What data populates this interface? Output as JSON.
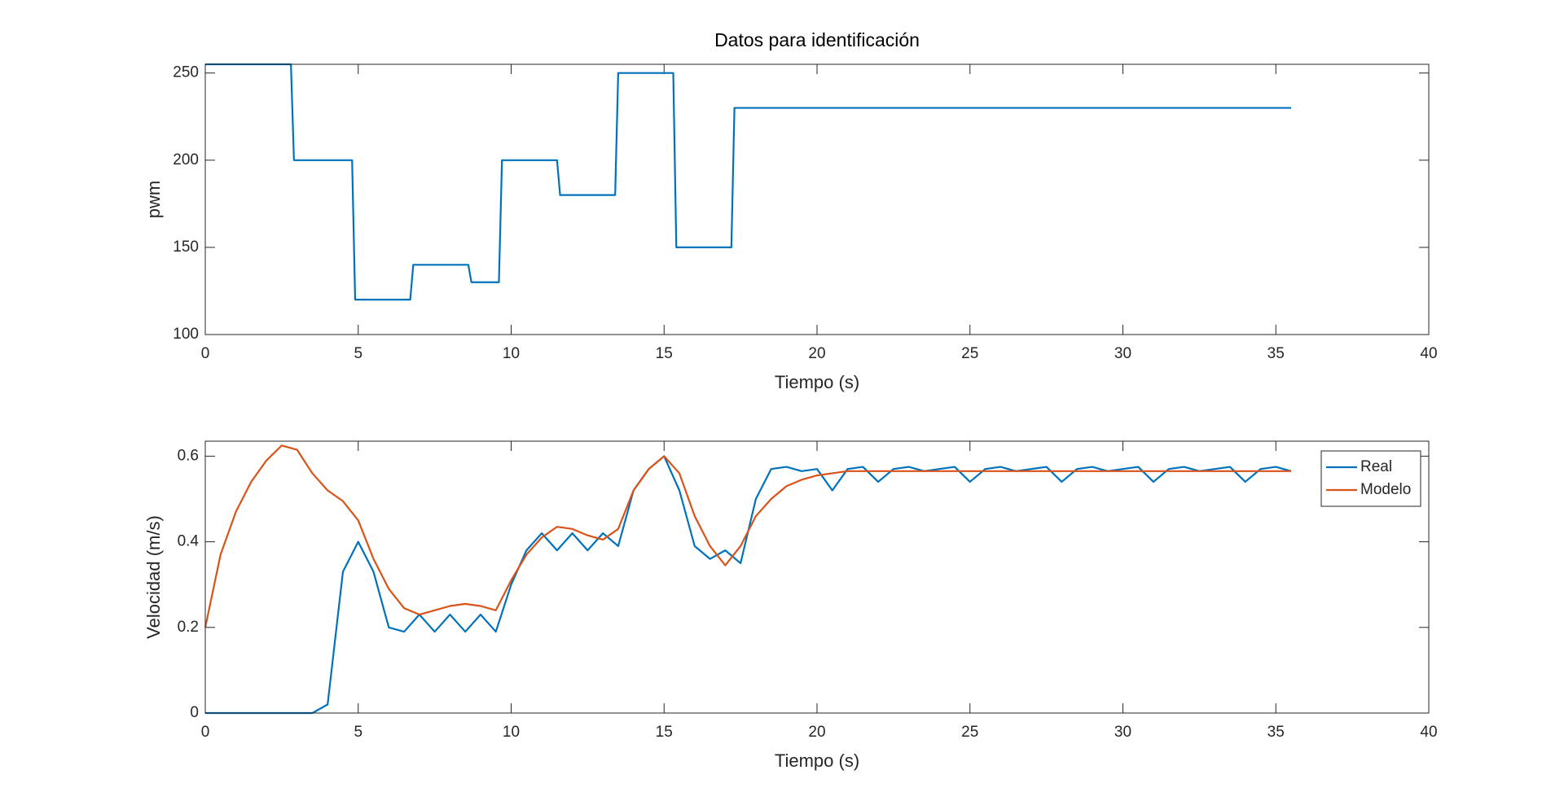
{
  "chart_data": [
    {
      "type": "line",
      "title": "Datos para identificación",
      "xlabel": "Tiempo (s)",
      "ylabel": "pwm",
      "x": [
        0,
        2.8,
        2.9,
        4.8,
        4.9,
        6.7,
        6.8,
        8.6,
        8.7,
        9.6,
        9.7,
        11.5,
        11.6,
        13.4,
        13.5,
        15.3,
        15.4,
        17.2,
        17.3,
        35.5
      ],
      "values": [
        255,
        255,
        200,
        200,
        120,
        120,
        140,
        140,
        130,
        130,
        200,
        200,
        180,
        180,
        250,
        250,
        150,
        150,
        230,
        230
      ],
      "color": "#0072bd",
      "xlim": [
        0,
        40
      ],
      "xticks": [
        0,
        5,
        10,
        15,
        20,
        25,
        30,
        35,
        40
      ],
      "ylim": [
        100,
        255
      ],
      "yticks": [
        100,
        150,
        200,
        250
      ]
    },
    {
      "type": "line",
      "xlabel": "Tiempo (s)",
      "ylabel": "Velocidad (m/s)",
      "x": [
        0,
        0.5,
        1,
        1.5,
        2,
        2.5,
        3,
        3.5,
        4,
        4.5,
        5,
        5.5,
        6,
        6.5,
        7,
        7.5,
        8,
        8.5,
        9,
        9.5,
        10,
        10.5,
        11,
        11.5,
        12,
        12.5,
        13,
        13.5,
        14,
        14.5,
        15,
        15.5,
        16,
        16.5,
        17,
        17.5,
        18,
        18.5,
        19,
        19.5,
        20,
        20.5,
        21,
        21.5,
        22,
        22.5,
        23,
        23.5,
        24,
        24.5,
        25,
        25.5,
        26,
        26.5,
        27,
        27.5,
        28,
        28.5,
        29,
        29.5,
        30,
        30.5,
        31,
        31.5,
        32,
        32.5,
        33,
        33.5,
        34,
        34.5,
        35,
        35.5
      ],
      "series": [
        {
          "name": "Real",
          "color": "#0072bd",
          "values": [
            0,
            0,
            0,
            0,
            0,
            0,
            0,
            0,
            0.02,
            0.33,
            0.4,
            0.33,
            0.2,
            0.19,
            0.23,
            0.19,
            0.23,
            0.19,
            0.23,
            0.19,
            0.3,
            0.38,
            0.42,
            0.38,
            0.42,
            0.38,
            0.42,
            0.39,
            0.52,
            0.57,
            0.6,
            0.52,
            0.39,
            0.36,
            0.38,
            0.35,
            0.5,
            0.57,
            0.575,
            0.565,
            0.57,
            0.52,
            0.57,
            0.575,
            0.54,
            0.57,
            0.575,
            0.565,
            0.57,
            0.575,
            0.54,
            0.57,
            0.575,
            0.565,
            0.57,
            0.575,
            0.54,
            0.57,
            0.575,
            0.565,
            0.57,
            0.575,
            0.54,
            0.57,
            0.575,
            0.565,
            0.57,
            0.575,
            0.54,
            0.57,
            0.575,
            0.565
          ]
        },
        {
          "name": "Modelo",
          "color": "#d95319",
          "values": [
            0.2,
            0.37,
            0.47,
            0.54,
            0.59,
            0.625,
            0.615,
            0.56,
            0.52,
            0.495,
            0.45,
            0.36,
            0.29,
            0.245,
            0.23,
            0.24,
            0.25,
            0.255,
            0.25,
            0.24,
            0.31,
            0.37,
            0.41,
            0.435,
            0.43,
            0.415,
            0.405,
            0.43,
            0.52,
            0.57,
            0.6,
            0.56,
            0.46,
            0.39,
            0.345,
            0.39,
            0.46,
            0.5,
            0.53,
            0.545,
            0.555,
            0.56,
            0.565,
            0.565,
            0.565,
            0.565,
            0.565,
            0.565,
            0.565,
            0.565,
            0.565,
            0.565,
            0.565,
            0.565,
            0.565,
            0.565,
            0.565,
            0.565,
            0.565,
            0.565,
            0.565,
            0.565,
            0.565,
            0.565,
            0.565,
            0.565,
            0.565,
            0.565,
            0.565,
            0.565,
            0.565,
            0.565
          ]
        }
      ],
      "xlim": [
        0,
        40
      ],
      "xticks": [
        0,
        5,
        10,
        15,
        20,
        25,
        30,
        35,
        40
      ],
      "ylim": [
        0,
        0.635
      ],
      "yticks": [
        0,
        0.2,
        0.4,
        0.6
      ],
      "legend": "upper right"
    }
  ]
}
